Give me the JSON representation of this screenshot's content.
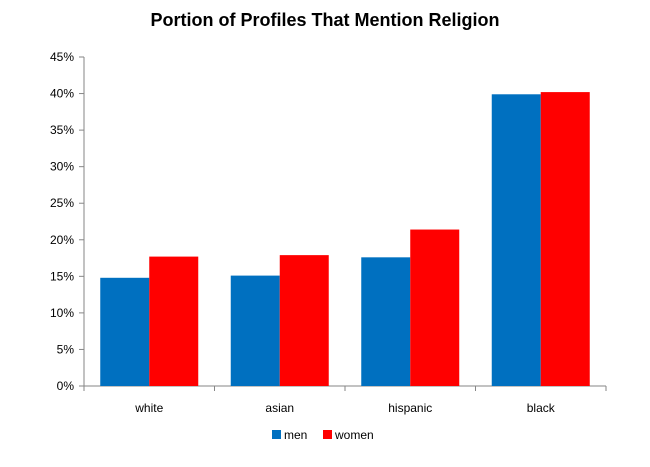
{
  "chart_data": {
    "type": "bar",
    "title": "Portion of Profiles That Mention Religion",
    "categories": [
      "white",
      "asian",
      "hispanic",
      "black"
    ],
    "series": [
      {
        "name": "men",
        "color": "#0070C0",
        "values": [
          14.8,
          15.1,
          17.6,
          39.9
        ]
      },
      {
        "name": "women",
        "color": "#FF0000",
        "values": [
          17.7,
          17.9,
          21.4,
          40.2
        ]
      }
    ],
    "ylim": [
      0,
      45
    ],
    "yticks": [
      "0%",
      "5%",
      "10%",
      "15%",
      "20%",
      "25%",
      "30%",
      "35%",
      "40%",
      "45%"
    ],
    "xlabel": "",
    "ylabel": "",
    "legend_position": "bottom",
    "grid": false
  }
}
